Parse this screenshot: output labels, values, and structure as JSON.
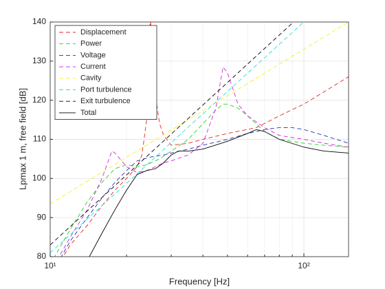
{
  "chart_data": {
    "type": "line",
    "xlabel": "Frequency [Hz]",
    "ylabel": "Lpmax 1 m, free field [dB]",
    "xscale": "log",
    "xlim": [
      10,
      150
    ],
    "ylim": [
      80,
      140
    ],
    "xticks": [
      {
        "value": 10,
        "label": "10¹"
      },
      {
        "value": 100,
        "label": "10²"
      }
    ],
    "xminorticks": [
      20,
      30,
      40,
      50,
      60,
      70,
      80,
      90
    ],
    "yticks": [
      80,
      90,
      100,
      110,
      120,
      130,
      140
    ],
    "grid": true,
    "legend": "upper-left",
    "series": [
      {
        "name": "Displacement",
        "color": "#e8211f",
        "dash": true,
        "x": [
          11,
          12,
          14,
          16,
          18,
          20,
          22,
          23,
          24,
          24.8,
          25.5,
          26,
          27,
          28,
          30,
          35,
          40,
          50,
          65,
          80,
          100,
          150
        ],
        "values": [
          79,
          83,
          88,
          93,
          97,
          100,
          103,
          106,
          115,
          141,
          130,
          121,
          114,
          111,
          108.5,
          109,
          110,
          111.5,
          113,
          116,
          119,
          126
        ]
      },
      {
        "name": "Power",
        "color": "#1fd31f",
        "dash": true,
        "x": [
          10,
          12,
          14,
          16,
          18,
          20,
          22,
          24,
          27,
          30,
          35,
          40,
          45,
          48,
          50,
          55,
          60,
          70,
          80,
          100,
          120,
          150
        ],
        "values": [
          78,
          87,
          94,
          99,
          102.5,
          103.5,
          103,
          103.5,
          105,
          107,
          110,
          114,
          117.5,
          119,
          119,
          118,
          116,
          112,
          110,
          109,
          108.5,
          108
        ]
      },
      {
        "name": "Voltage",
        "color": "#1f2fb0",
        "dash": true,
        "x": [
          10,
          12,
          14,
          16,
          18,
          20,
          22,
          25,
          28,
          30,
          35,
          40,
          50,
          60,
          70,
          80,
          90,
          100,
          120,
          150
        ],
        "values": [
          75,
          84,
          90,
          95,
          99,
          102,
          104.5,
          105.5,
          106,
          106.5,
          107.5,
          108.5,
          110,
          111.5,
          112.5,
          113,
          113,
          112.5,
          111,
          109
        ]
      },
      {
        "name": "Current",
        "color": "#d91fd9",
        "dash": true,
        "x": [
          10,
          12,
          14,
          16,
          17.5,
          18,
          20,
          22,
          24,
          26,
          28,
          30,
          35,
          40,
          45,
          48,
          50,
          55,
          60,
          70,
          80,
          100,
          120,
          150
        ],
        "values": [
          76,
          85,
          92,
          100,
          107,
          106.5,
          103,
          101.5,
          102,
          103,
          104,
          104.5,
          106,
          109,
          118,
          128.5,
          127,
          119,
          116,
          113,
          111,
          110,
          109,
          108
        ]
      },
      {
        "name": "Cavity",
        "color": "#f2f21f",
        "dash": true,
        "x": [
          10,
          150
        ],
        "values": [
          93.5,
          140
        ]
      },
      {
        "name": "Port turbulence",
        "color": "#1fdede",
        "dash": true,
        "x": [
          10,
          150
        ],
        "values": [
          81,
          150.4
        ]
      },
      {
        "name": "Exit turbulence",
        "color": "#000000",
        "dash": true,
        "x": [
          10,
          150
        ],
        "values": [
          83,
          152.9
        ]
      },
      {
        "name": "Total",
        "color": "#000000",
        "dash": false,
        "x": [
          14,
          16,
          18,
          20,
          22,
          24,
          26,
          28,
          30,
          32,
          35,
          40,
          50,
          60,
          65,
          70,
          80,
          100,
          120,
          150
        ],
        "values": [
          79,
          86,
          92,
          97,
          101,
          102,
          102.5,
          104,
          106,
          107,
          107,
          107.5,
          109.5,
          111.5,
          112.5,
          112,
          110,
          108,
          107,
          106.5
        ]
      }
    ]
  }
}
